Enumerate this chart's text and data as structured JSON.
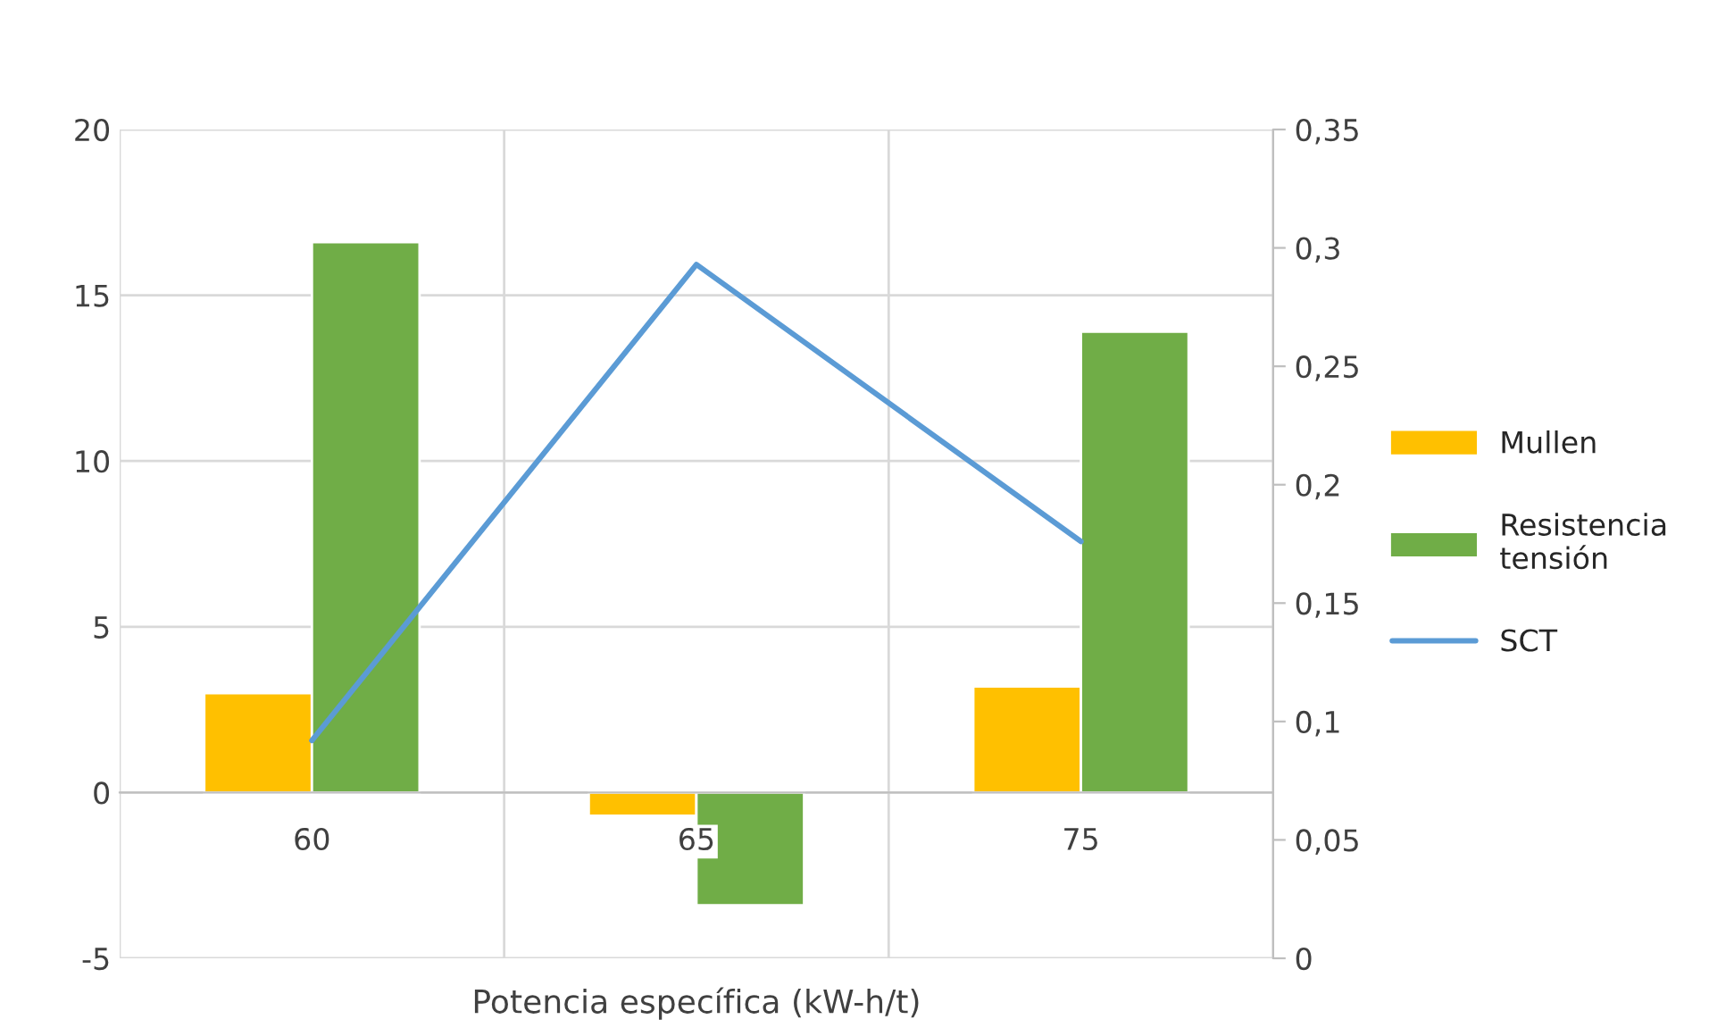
{
  "chart_data": {
    "type": "bar",
    "xlabel": "Potencia específica (kW-h/t)",
    "categories": [
      "60",
      "65",
      "75"
    ],
    "series": [
      {
        "name": "Mullen",
        "color": "#ffc000",
        "values": [
          3.0,
          -0.7,
          3.2
        ]
      },
      {
        "name": "Resistencia tensión",
        "color": "#70ad47",
        "values": [
          16.6,
          -3.4,
          13.9
        ]
      },
      {
        "name": "SCT",
        "type": "line",
        "axis": "y2",
        "color": "#5b9bd5",
        "values": [
          0.092,
          0.293,
          0.176
        ]
      }
    ],
    "ylim": [
      -5,
      20
    ],
    "yticks": [
      -5,
      0,
      5,
      10,
      15,
      20
    ],
    "y2lim": [
      0,
      0.35
    ],
    "y2ticks": [
      {
        "value": 0,
        "label": "0"
      },
      {
        "value": 0.05,
        "label": "0,05"
      },
      {
        "value": 0.1,
        "label": "0,1"
      },
      {
        "value": 0.15,
        "label": "0,15"
      },
      {
        "value": 0.2,
        "label": "0,2"
      },
      {
        "value": 0.25,
        "label": "0,25"
      },
      {
        "value": 0.3,
        "label": "0,3"
      },
      {
        "value": 0.35,
        "label": "0,35"
      }
    ],
    "grid": true,
    "legend": "right",
    "marker": "none",
    "line_style": "solid"
  }
}
